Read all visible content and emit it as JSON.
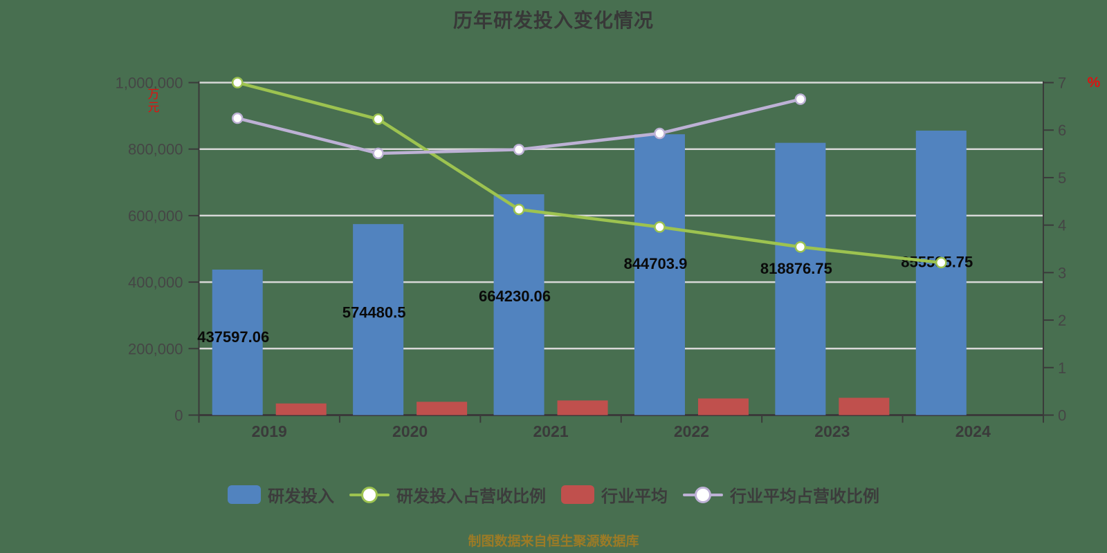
{
  "title": "历年研发投入变化情况",
  "source_note": "制图数据来自恒生聚源数据库",
  "colors": {
    "background": "#486F50",
    "bar_blue": "#5183BF",
    "bar_red": "#C0504D",
    "line_green": "#9DC350",
    "line_purple": "#BDB1D5",
    "marker_fill": "#FFFFFF",
    "grid": "#D8D8D8",
    "axis": "#3A3A3A",
    "axis_text": "#454545",
    "year_text": "#3A3A3A",
    "data_label": "#0A0A0A",
    "unit_text": "#E01010",
    "source_text": "#9C7B26",
    "title_text": "#383838"
  },
  "left_axis": {
    "unit": "万元",
    "tick_values": [
      0,
      200000,
      400000,
      600000,
      800000,
      1000000
    ],
    "tick_labels": [
      "0",
      "200,000",
      "400,000",
      "600,000",
      "800,000",
      "1,000,000"
    ],
    "max": 1000000
  },
  "right_axis": {
    "unit": "%",
    "tick_values": [
      0,
      1,
      2,
      3,
      4,
      5,
      6,
      7
    ],
    "tick_labels": [
      "0",
      "1",
      "2",
      "3",
      "4",
      "5",
      "6",
      "7"
    ],
    "max": 7
  },
  "chart_data": {
    "type": "bar-line-combo",
    "title": "历年研发投入变化情况",
    "categories": [
      "2019",
      "2020",
      "2021",
      "2022",
      "2023",
      "2024"
    ],
    "left_ylim": [
      0,
      1000000
    ],
    "right_ylim": [
      0,
      7
    ],
    "grid": true,
    "legend_position": "bottom",
    "series": [
      {
        "name": "研发投入",
        "type": "bar",
        "axis": "left",
        "color": "#5183BF",
        "values": [
          437597.06,
          574480.5,
          664230.06,
          844703.9,
          818876.75,
          855595.75
        ],
        "labels": [
          "437597.06",
          "574480.5",
          "664230.06",
          "844703.9",
          "818876.75",
          "855595.75"
        ]
      },
      {
        "name": "研发投入占营收比例",
        "type": "line",
        "axis": "right",
        "color": "#9DC350",
        "values": [
          7.0,
          6.23,
          4.33,
          3.96,
          3.54,
          3.21
        ]
      },
      {
        "name": "行业平均",
        "type": "bar",
        "axis": "left",
        "color": "#C0504D",
        "values": [
          35000,
          40000,
          44000,
          50000,
          52000,
          null
        ],
        "labels": [
          "",
          "",
          "",
          "",
          "",
          ""
        ]
      },
      {
        "name": "行业平均占营收比例",
        "type": "line",
        "axis": "right",
        "color": "#BDB1D5",
        "values": [
          6.25,
          5.51,
          5.59,
          5.93,
          6.65,
          null
        ]
      }
    ]
  },
  "legend": [
    {
      "label": "研发投入",
      "marker": "bar",
      "color": "#5183BF"
    },
    {
      "label": "研发投入占营收比例",
      "marker": "line",
      "color": "#9DC350"
    },
    {
      "label": "行业平均",
      "marker": "bar",
      "color": "#C0504D"
    },
    {
      "label": "行业平均占营收比例",
      "marker": "line",
      "color": "#BDB1D5"
    }
  ]
}
